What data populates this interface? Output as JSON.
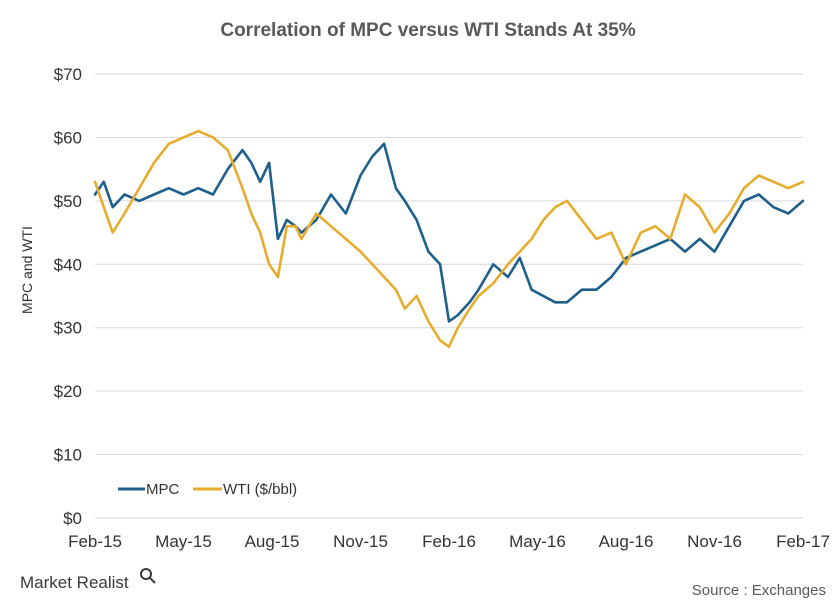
{
  "chart_data": {
    "type": "line",
    "title": "Correlation  of MPC versus WTI Stands At 35%",
    "ylabel": "MPC and WTI",
    "xlabel": "",
    "ylim": [
      0,
      70
    ],
    "y_ticks": [
      0,
      10,
      20,
      30,
      40,
      50,
      60,
      70
    ],
    "y_tick_labels": [
      "$0",
      "$10",
      "$20",
      "$30",
      "$40",
      "$50",
      "$60",
      "$70"
    ],
    "x_tick_labels": [
      "Feb-15",
      "May-15",
      "Aug-15",
      "Nov-15",
      "Feb-16",
      "May-16",
      "Aug-16",
      "Nov-16",
      "Feb-17"
    ],
    "xlim": [
      0,
      24
    ],
    "x_unit": "months since Feb-15",
    "grid": true,
    "legend_position": "bottom-left",
    "series": [
      {
        "name": "MPC",
        "color": "#1f5f8b",
        "x": [
          0,
          0.3,
          0.6,
          1,
          1.5,
          2,
          2.5,
          3,
          3.5,
          4,
          4.5,
          5,
          5.3,
          5.6,
          5.9,
          6.2,
          6.5,
          6.8,
          7,
          7.5,
          8,
          8.5,
          9,
          9.4,
          9.8,
          10.2,
          10.5,
          10.9,
          11.3,
          11.7,
          12,
          12.3,
          12.7,
          13,
          13.5,
          14,
          14.4,
          14.8,
          15.2,
          15.6,
          16,
          16.5,
          17,
          17.5,
          18,
          18.5,
          19,
          19.5,
          20,
          20.5,
          21,
          21.5,
          22,
          22.5,
          23,
          23.5,
          24
        ],
        "y": [
          51,
          53,
          49,
          51,
          50,
          51,
          52,
          51,
          52,
          51,
          55,
          58,
          56,
          53,
          56,
          44,
          47,
          46,
          45,
          47,
          51,
          48,
          54,
          57,
          59,
          52,
          50,
          47,
          42,
          40,
          31,
          32,
          34,
          36,
          40,
          38,
          41,
          36,
          35,
          34,
          34,
          36,
          36,
          38,
          41,
          42,
          43,
          44,
          42,
          44,
          42,
          46,
          50,
          51,
          49,
          48,
          50
        ]
      },
      {
        "name": "WTI ($/bbl)",
        "color": "#e6ac2e",
        "x": [
          0,
          0.3,
          0.6,
          1,
          1.5,
          2,
          2.5,
          3,
          3.5,
          4,
          4.5,
          5,
          5.3,
          5.6,
          5.9,
          6.2,
          6.5,
          6.8,
          7,
          7.5,
          8,
          8.5,
          9,
          9.4,
          9.8,
          10.2,
          10.5,
          10.9,
          11.3,
          11.7,
          12,
          12.3,
          12.7,
          13,
          13.5,
          14,
          14.4,
          14.8,
          15.2,
          15.6,
          16,
          16.5,
          17,
          17.5,
          18,
          18.5,
          19,
          19.5,
          20,
          20.5,
          21,
          21.5,
          22,
          22.5,
          23,
          23.5,
          24
        ],
        "y": [
          53,
          49,
          45,
          48,
          52,
          56,
          59,
          60,
          61,
          60,
          58,
          52,
          48,
          45,
          40,
          38,
          46,
          46,
          44,
          48,
          46,
          44,
          42,
          40,
          38,
          36,
          33,
          35,
          31,
          28,
          27,
          30,
          33,
          35,
          37,
          40,
          42,
          44,
          47,
          49,
          50,
          47,
          44,
          45,
          40,
          45,
          46,
          44,
          51,
          49,
          45,
          48,
          52,
          54,
          53,
          52,
          53
        ]
      }
    ]
  },
  "legend": {
    "items": [
      "MPC",
      "WTI ($/bbl)"
    ]
  },
  "footer": {
    "brand_text": "Market Realist",
    "source_text": "Source : Exchanges"
  }
}
